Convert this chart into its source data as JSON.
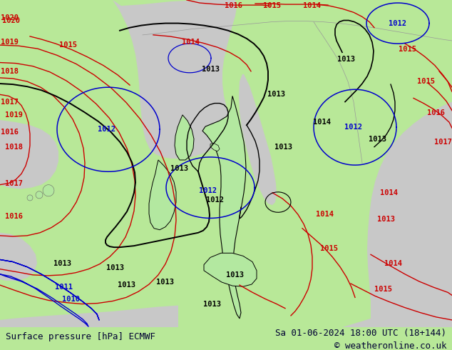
{
  "title_left": "Surface pressure [hPa] ECMWF",
  "title_right": "Sa 01-06-2024 18:00 UTC (18+144)",
  "copyright": "© weatheronline.co.uk",
  "land_color": "#b3e8a0",
  "sea_color": "#c8c8c8",
  "outside_color": "#b8e898",
  "bottom_bar_color": "#d8d8e8",
  "isobar_black": "#000000",
  "isobar_red": "#cc0000",
  "isobar_blue": "#0000cc",
  "text_color": "#000033",
  "fig_width": 6.34,
  "fig_height": 4.9,
  "dpi": 100,
  "black_labels": [
    [
      252,
      218,
      "1013"
    ],
    [
      302,
      175,
      "1012"
    ],
    [
      388,
      320,
      "1013"
    ],
    [
      485,
      368,
      "1013"
    ],
    [
      398,
      248,
      "1013"
    ],
    [
      295,
      355,
      "1013"
    ],
    [
      330,
      72,
      "1013"
    ],
    [
      232,
      62,
      "1013"
    ],
    [
      298,
      32,
      "1013"
    ],
    [
      88,
      88,
      "1013"
    ],
    [
      452,
      282,
      "1014"
    ],
    [
      530,
      258,
      "1013"
    ],
    [
      162,
      82,
      "1013"
    ],
    [
      178,
      58,
      "1013"
    ]
  ],
  "blue_labels": [
    [
      150,
      272,
      "1012"
    ],
    [
      292,
      188,
      "1012"
    ],
    [
      495,
      275,
      "1012"
    ],
    [
      558,
      418,
      "1012"
    ],
    [
      90,
      55,
      "1011"
    ],
    [
      100,
      38,
      "1010"
    ]
  ],
  "red_labels": [
    [
      20,
      292,
      "1019"
    ],
    [
      20,
      248,
      "1018"
    ],
    [
      20,
      198,
      "1017"
    ],
    [
      20,
      152,
      "1016"
    ],
    [
      15,
      422,
      "1020"
    ],
    [
      95,
      388,
      "1015"
    ],
    [
      268,
      392,
      "1014"
    ],
    [
      572,
      382,
      "1015"
    ],
    [
      598,
      338,
      "1015"
    ],
    [
      612,
      295,
      "1016"
    ],
    [
      622,
      255,
      "1017"
    ],
    [
      328,
      442,
      "1016"
    ],
    [
      382,
      442,
      "1015"
    ],
    [
      438,
      442,
      "1014"
    ],
    [
      552,
      88,
      "1014"
    ],
    [
      538,
      52,
      "1015"
    ],
    [
      455,
      155,
      "1014"
    ],
    [
      462,
      108,
      "1015"
    ],
    [
      542,
      148,
      "1013"
    ],
    [
      545,
      185,
      "1014"
    ]
  ]
}
